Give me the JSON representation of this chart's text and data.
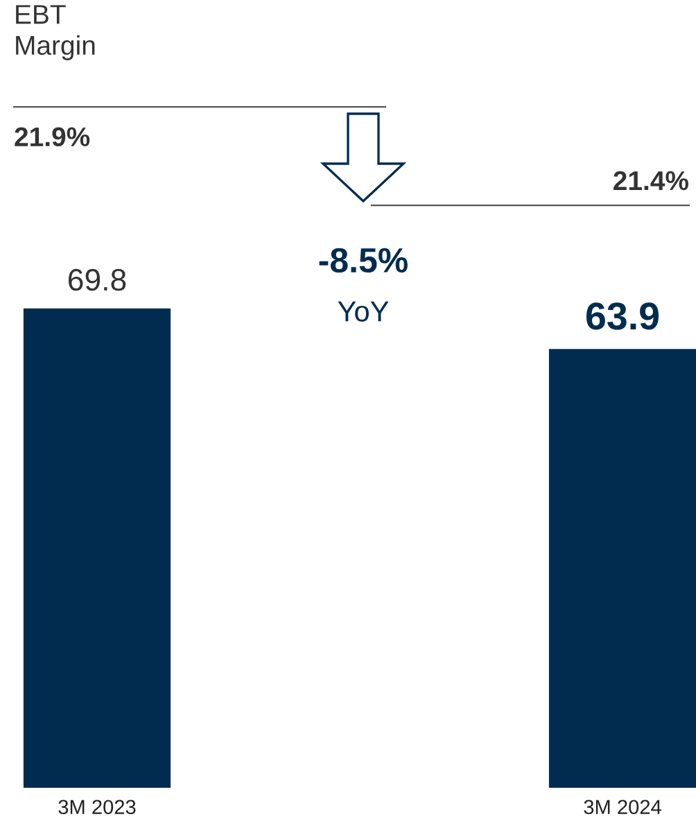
{
  "chart_data": {
    "type": "bar",
    "categories": [
      "3M 2023",
      "3M 2024"
    ],
    "values": [
      69.8,
      63.9
    ],
    "color": "#012c50",
    "data_labels": true,
    "grid": false,
    "legend": false,
    "annotations": [
      "EBT\nMargin",
      "21.9%",
      "21.4%",
      "-8.5%",
      "YoY"
    ]
  }
}
